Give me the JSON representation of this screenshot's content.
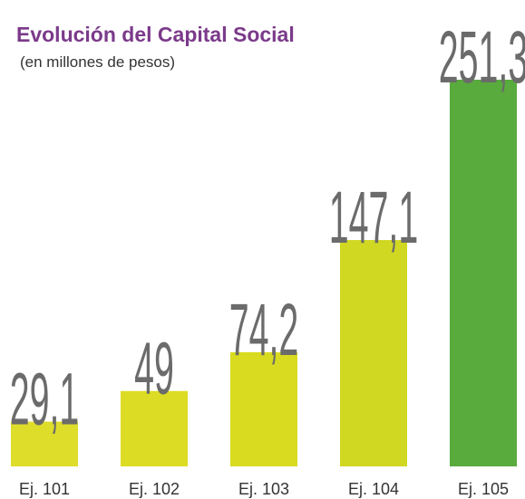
{
  "chart_data": {
    "type": "bar",
    "title": "Evolución del Capital Social",
    "subtitle": "(en millones de pesos)",
    "categories": [
      "Ej. 101",
      "Ej. 102",
      "Ej. 103",
      "Ej. 104",
      "Ej. 105"
    ],
    "values": [
      29.1,
      49,
      74.2,
      147.1,
      251.3
    ],
    "value_labels": [
      "29,1",
      "49",
      "74,2",
      "147,1",
      "251,3"
    ],
    "colors": [
      "#dedd2a",
      "#dcdc24",
      "#d8db20",
      "#d0d822",
      "#58ab3c"
    ]
  }
}
